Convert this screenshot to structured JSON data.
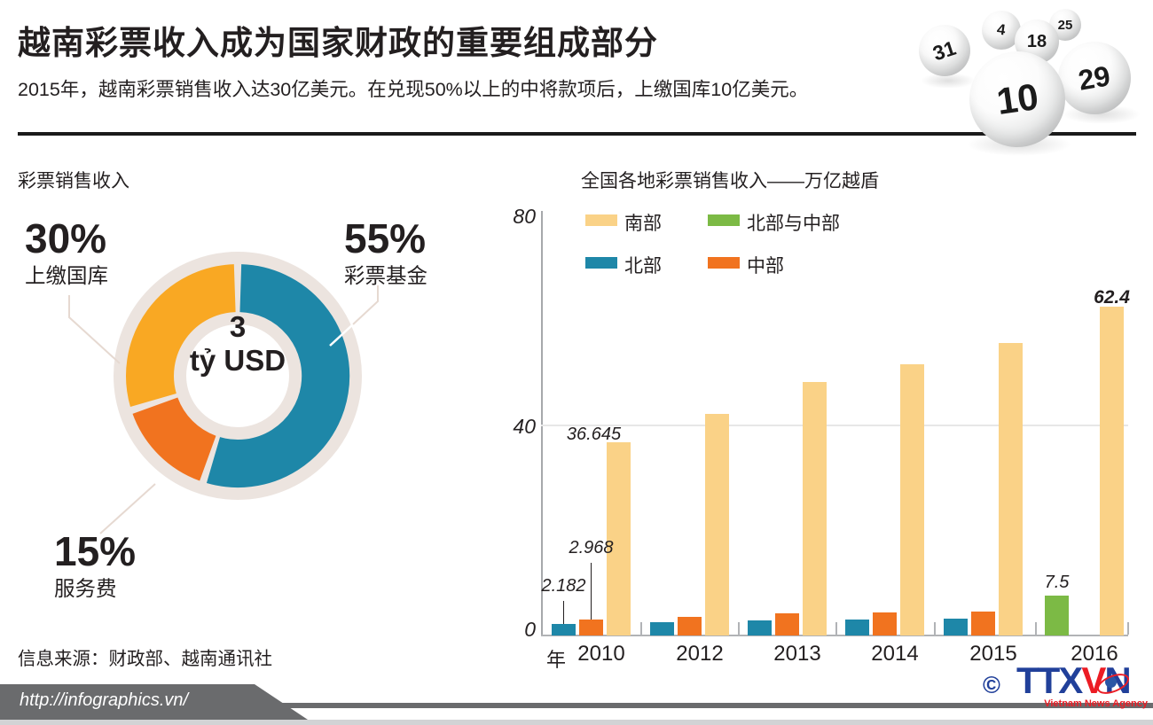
{
  "header": {
    "title": "越南彩票收入成为国家财政的重要组成部分",
    "subtitle": "2015年，越南彩票销售收入达30亿美元。在兑现50%以上的中将款项后，上缴国库10亿美元。",
    "balls": [
      {
        "number": "25"
      },
      {
        "number": "4"
      },
      {
        "number": "18"
      },
      {
        "number": "31"
      },
      {
        "number": "29"
      },
      {
        "number": "10"
      }
    ]
  },
  "donut": {
    "center_value": "3",
    "center_unit": "tỷ USD",
    "labels": [
      {
        "pct": "30%",
        "name": "上缴国库"
      },
      {
        "pct": "55%",
        "name": "彩票基金"
      },
      {
        "pct": "15%",
        "name": "服务费"
      }
    ]
  },
  "bar_chart": {
    "axis_unit": "年"
  },
  "source_text": "信息来源：财政部、越南通讯社",
  "footer": {
    "url": "http://infographics.vn/",
    "copyright": "©",
    "logo_part1": "TTX",
    "logo_part2": "V",
    "logo_part3": "N",
    "logo_subtitle": "Vietnam News Agency"
  },
  "colors": {
    "donut_fund": "#1E87A8",
    "donut_service": "#F1731F",
    "donut_treasury": "#F9A823",
    "bar_south": "#FAD287",
    "bar_north": "#1E87A8",
    "bar_central": "#F1731F",
    "bar_north_central": "#7CBA45",
    "logo_blue": "#21409A",
    "logo_red": "#EC1C24"
  },
  "chart_data": [
    {
      "type": "pie",
      "title": "彩票销售收入",
      "center_label": "3 tỷ USD",
      "unit": "%",
      "slices": [
        {
          "label": "彩票基金",
          "value": 55,
          "color": "#1E87A8",
          "key": "fund"
        },
        {
          "label": "服务费",
          "value": 15,
          "color": "#F1731F",
          "key": "service"
        },
        {
          "label": "上缴国库",
          "value": 30,
          "color": "#F9A823",
          "key": "treasury"
        }
      ]
    },
    {
      "type": "bar",
      "title": "全国各地彩票销售收入——万亿越盾",
      "categories": [
        "2010",
        "2012",
        "2013",
        "2014",
        "2015",
        "2016"
      ],
      "series": [
        {
          "name": "南部",
          "key": "south",
          "color": "#FAD287",
          "values": [
            36.645,
            42,
            48,
            51.5,
            55.5,
            62.4
          ]
        },
        {
          "name": "北部",
          "key": "north",
          "color": "#1E87A8",
          "values": [
            2.182,
            2.6,
            2.9,
            3.0,
            3.2,
            null
          ]
        },
        {
          "name": "中部",
          "key": "central",
          "color": "#F1731F",
          "values": [
            2.968,
            3.6,
            4.2,
            4.3,
            4.5,
            null
          ]
        },
        {
          "name": "北部与中部",
          "key": "north_central",
          "color": "#7CBA45",
          "values": [
            null,
            null,
            null,
            null,
            null,
            7.5
          ]
        }
      ],
      "ylim": [
        0,
        80
      ],
      "yticks": [
        "0",
        "40",
        "80"
      ],
      "xlabel": "年",
      "grid": "horizontal line at 40",
      "legend_position": "top",
      "value_labels": {
        "2010": {
          "north": "2.182",
          "central": "2.968",
          "south": "36.645"
        },
        "2016": {
          "north_central": "7.5",
          "south": "62.4"
        }
      }
    }
  ]
}
